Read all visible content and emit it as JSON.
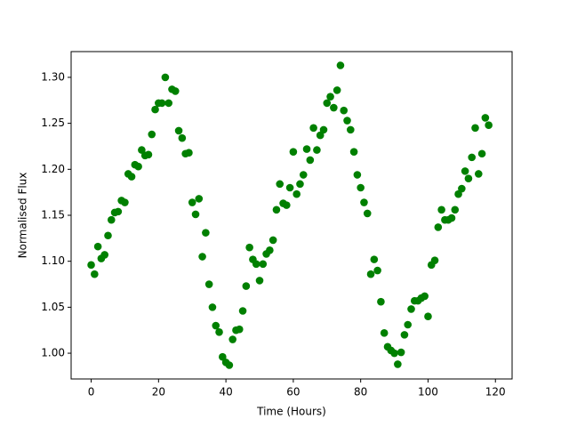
{
  "chart_data": {
    "type": "scatter",
    "xlabel": "Time (Hours)",
    "ylabel": "Normalised Flux",
    "color": "#008000",
    "x": [
      0,
      1,
      2,
      3,
      4,
      5,
      6,
      7,
      8,
      9,
      10,
      11,
      12,
      13,
      14,
      15,
      16,
      17,
      18,
      19,
      20,
      21,
      22,
      23,
      24,
      25,
      26,
      27,
      28,
      29,
      30,
      31,
      32,
      33,
      34,
      35,
      36,
      37,
      38,
      39,
      40,
      41,
      42,
      43,
      44,
      45,
      46,
      47,
      48,
      49,
      50,
      51,
      52,
      53,
      54,
      55,
      56,
      57,
      58,
      59,
      60,
      61,
      62,
      63,
      64,
      65,
      66,
      67,
      68,
      69,
      70,
      71,
      72,
      73,
      74,
      75,
      76,
      77,
      78,
      79,
      80,
      81,
      82,
      83,
      84,
      85,
      86,
      87,
      88,
      89,
      90,
      91,
      92,
      93,
      94,
      95,
      96,
      97,
      98,
      99,
      100,
      101,
      102,
      103,
      104,
      105,
      106,
      107,
      108,
      109,
      110,
      111,
      112,
      113,
      114,
      115,
      116,
      117,
      118
    ],
    "values": [
      1.096,
      1.086,
      1.116,
      1.103,
      1.107,
      1.128,
      1.145,
      1.153,
      1.154,
      1.166,
      1.164,
      1.195,
      1.192,
      1.205,
      1.203,
      1.221,
      1.215,
      1.216,
      1.238,
      1.265,
      1.272,
      1.272,
      1.3,
      1.272,
      1.287,
      1.285,
      1.242,
      1.234,
      1.217,
      1.218,
      1.164,
      1.151,
      1.168,
      1.105,
      1.131,
      1.075,
      1.05,
      1.03,
      1.023,
      0.996,
      0.99,
      0.987,
      1.015,
      1.025,
      1.026,
      1.046,
      1.073,
      1.115,
      1.102,
      1.097,
      1.079,
      1.097,
      1.108,
      1.112,
      1.123,
      1.156,
      1.184,
      1.163,
      1.161,
      1.18,
      1.219,
      1.173,
      1.184,
      1.194,
      1.222,
      1.21,
      1.245,
      1.221,
      1.237,
      1.243,
      1.272,
      1.279,
      1.267,
      1.286,
      1.313,
      1.264,
      1.253,
      1.243,
      1.219,
      1.194,
      1.18,
      1.164,
      1.152,
      1.086,
      1.102,
      1.09,
      1.056,
      1.022,
      1.007,
      1.003,
      1.0,
      0.988,
      1.001,
      1.02,
      1.031,
      1.048,
      1.057,
      1.057,
      1.06,
      1.062,
      1.04,
      1.096,
      1.101,
      1.137,
      1.156,
      1.145,
      1.145,
      1.147,
      1.156,
      1.173,
      1.179,
      1.198,
      1.19,
      1.213,
      1.245,
      1.195,
      1.217,
      1.256,
      1.248
    ],
    "xlim": [
      -5.95,
      124.95
    ],
    "ylim": [
      0.972,
      1.328
    ],
    "xticks": [
      0,
      20,
      40,
      60,
      80,
      100,
      120
    ],
    "yticks": [
      {
        "value": 1.0,
        "label": "1.00"
      },
      1.05,
      {
        "value": 1.1,
        "label": "1.10"
      },
      1.15,
      {
        "value": 1.2,
        "label": "1.20"
      },
      1.25,
      {
        "value": 1.3,
        "label": "1.30"
      }
    ]
  }
}
